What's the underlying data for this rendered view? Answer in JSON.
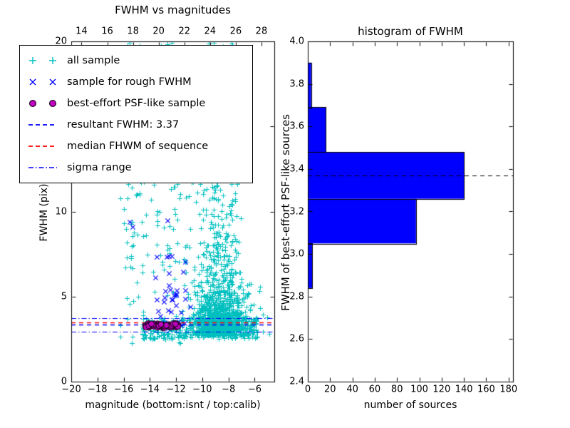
{
  "figure": {
    "background": "#ffffff"
  },
  "chart_data": [
    {
      "type": "scatter",
      "title": "FWHM vs magnitudes",
      "xlabel": "magnitude (bottom:isnt / top:calib)",
      "ylabel": "FWHM (pix)",
      "x_bottom": {
        "min": -20,
        "max": -4.5,
        "ticks": [
          {
            "v": -20,
            "label": "−20"
          },
          {
            "v": -18,
            "label": "−18"
          },
          {
            "v": -16,
            "label": "−16"
          },
          {
            "v": -14,
            "label": "−14"
          },
          {
            "v": -12,
            "label": "−12"
          },
          {
            "v": -10,
            "label": "−10"
          },
          {
            "v": -8,
            "label": "−8"
          },
          {
            "v": -6,
            "label": "−6"
          }
        ]
      },
      "x_top": {
        "min": 13.2,
        "max": 29.0,
        "ticks": [
          {
            "v": 14,
            "label": "14"
          },
          {
            "v": 16,
            "label": "16"
          },
          {
            "v": 18,
            "label": "18"
          },
          {
            "v": 20,
            "label": "20"
          },
          {
            "v": 22,
            "label": "22"
          },
          {
            "v": 24,
            "label": "24"
          },
          {
            "v": 26,
            "label": "26"
          },
          {
            "v": 28,
            "label": "28"
          }
        ]
      },
      "y": {
        "min": 0,
        "max": 20,
        "ticks": [
          {
            "v": 0,
            "label": "0"
          },
          {
            "v": 5,
            "label": "5"
          },
          {
            "v": 10,
            "label": "10"
          },
          {
            "v": 15,
            "label": "15"
          },
          {
            "v": 20,
            "label": "20"
          }
        ]
      },
      "legend": [
        {
          "label": "all sample",
          "marker": "plus",
          "color": "#00bfbf"
        },
        {
          "label": "sample for rough FWHM",
          "marker": "x",
          "color": "#0000ff"
        },
        {
          "label": "best-effort PSF-like sample",
          "marker": "circle",
          "color": "#bf00bf"
        },
        {
          "label": "resultant FWHM: 3.37",
          "marker": "dashed-line",
          "color": "#0000ff"
        },
        {
          "label": "median FHWM of sequence",
          "marker": "dashed-line",
          "color": "#ff0000"
        },
        {
          "label": "sigma range",
          "marker": "dashdot-line",
          "color": "#0000ff"
        }
      ],
      "series": {
        "all_sample": {
          "marker": "plus",
          "color": "#00bfbf",
          "seed": 7,
          "clusters": [
            {
              "kind": "uniform",
              "count": 230,
              "x": [
                -16.3,
                -10.8
              ],
              "y": [
                2.2,
                20.0
              ]
            },
            {
              "kind": "gauss_exp",
              "count": 950,
              "x_mean": -8.6,
              "x_sigma": 1.05,
              "y_base": 2.7,
              "y_scale": 1.2
            },
            {
              "kind": "gauss_uniform",
              "count": 420,
              "x_mean": -8.8,
              "x_sigma": 0.85,
              "y": [
                3.0,
                20.0
              ]
            },
            {
              "kind": "uniform",
              "count": 300,
              "x": [
                -14.6,
                -5.8
              ],
              "y": [
                2.5,
                3.8
              ]
            }
          ]
        },
        "rough_sample": {
          "marker": "x",
          "color": "#0000ff",
          "seed": 11,
          "cluster": {
            "count": 40,
            "x": [
              -13.7,
              -10.9
            ],
            "y_base": 3.1,
            "y_scale": 2.3,
            "y_max": 13.0
          },
          "extra_points": [
            [
              -15.55,
              9.4
            ],
            [
              -15.35,
              9.1
            ],
            [
              -12.55,
              12.6
            ]
          ]
        },
        "psf_sample": {
          "marker": "circle",
          "fill": "#bf00bf",
          "edge": "#000000",
          "seed": 23,
          "cluster": {
            "count": 75,
            "x": [
              -14.35,
              -11.75
            ],
            "y_mean": 3.3,
            "y_sigma": 0.07
          }
        }
      },
      "lines": {
        "resultant_fwhm": {
          "value": 3.37,
          "color": "#0000ff",
          "style": "dashed"
        },
        "median_fwhm": {
          "value": 3.5,
          "color": "#ff0000",
          "style": "dashed"
        },
        "sigma_range": {
          "low": 2.93,
          "high": 3.75,
          "color": "#0000ff",
          "style": "dashdot"
        }
      }
    },
    {
      "type": "bar",
      "orientation": "horizontal",
      "title": "histogram of FWHM",
      "xlabel": "number of sources",
      "ylabel": "FWHM of best-effort PSF-like sources",
      "x": {
        "min": 0,
        "max": 184,
        "ticks": [
          {
            "v": 0,
            "label": "0"
          },
          {
            "v": 20,
            "label": "20"
          },
          {
            "v": 40,
            "label": "40"
          },
          {
            "v": 60,
            "label": "60"
          },
          {
            "v": 80,
            "label": "80"
          },
          {
            "v": 100,
            "label": "100"
          },
          {
            "v": 120,
            "label": "120"
          },
          {
            "v": 140,
            "label": "140"
          },
          {
            "v": 160,
            "label": "160"
          },
          {
            "v": 180,
            "label": "180"
          }
        ]
      },
      "y": {
        "min": 2.4,
        "max": 4.0,
        "ticks": [
          {
            "v": 2.4,
            "label": "2.4"
          },
          {
            "v": 2.6,
            "label": "2.6"
          },
          {
            "v": 2.8,
            "label": "2.8"
          },
          {
            "v": 3.0,
            "label": "3.0"
          },
          {
            "v": 3.2,
            "label": "3.2"
          },
          {
            "v": 3.4,
            "label": "3.4"
          },
          {
            "v": 3.6,
            "label": "3.6"
          },
          {
            "v": 3.8,
            "label": "3.8"
          },
          {
            "v": 4.0,
            "label": "4.0"
          }
        ]
      },
      "bins": {
        "edges": [
          2.84,
          3.05,
          3.26,
          3.48,
          3.69,
          3.9
        ],
        "counts": [
          4,
          97,
          140,
          16,
          3
        ]
      },
      "bar_color": "#0000ff",
      "bar_edge_color": "#000000",
      "dashed_line": {
        "value": 3.37,
        "color": "#000000"
      }
    }
  ]
}
